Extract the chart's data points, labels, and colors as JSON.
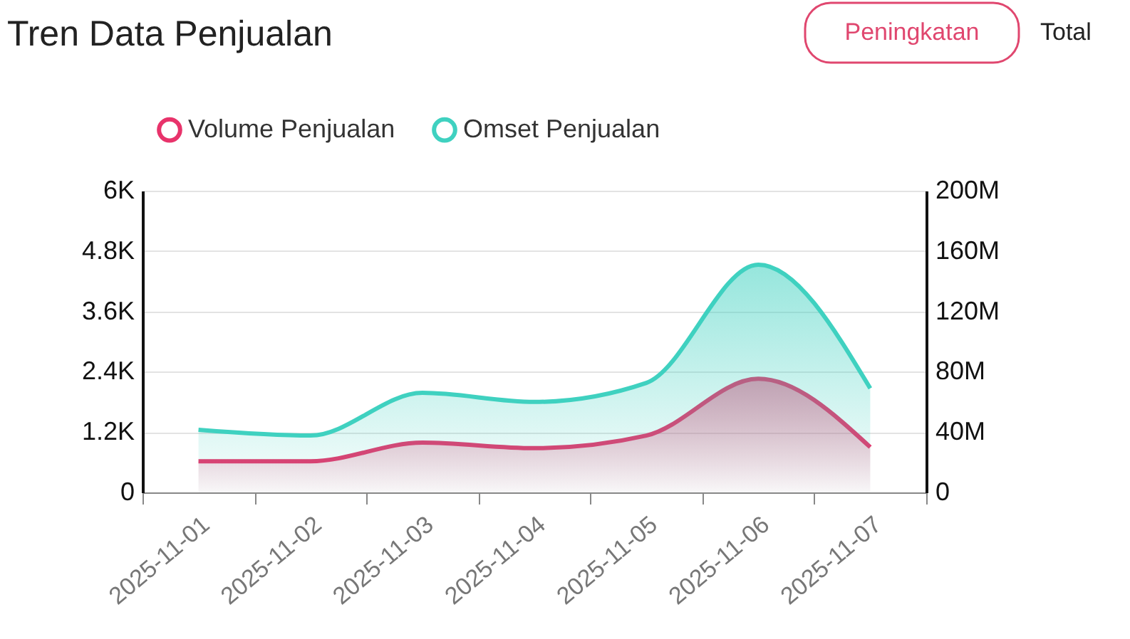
{
  "chart_data": {
    "type": "area",
    "title": "Tren Data Penjualan",
    "annotations": [
      "Peningkatan",
      "Total"
    ],
    "categories": [
      "2025-11-01",
      "2025-11-02",
      "2025-11-03",
      "2025-11-04",
      "2025-11-05",
      "2025-11-06",
      "2025-11-07"
    ],
    "series": [
      {
        "name": "Volume Penjualan",
        "color": "#e8336b",
        "values": [
          620,
          620,
          990,
          880,
          1130,
          2260,
          900
        ]
      },
      {
        "name": "Omset Penjualan",
        "color": "#3fd1c0",
        "axis": "y2",
        "values": [
          41500000,
          37700000,
          66000000,
          60000000,
          72600000,
          151000000,
          69000000
        ]
      }
    ],
    "ylim": [
      0,
      6000
    ],
    "yticks": [
      0,
      {
        "value": 1200,
        "label": "1.2K"
      },
      {
        "value": 2400,
        "label": "2.4K"
      },
      {
        "value": 3600,
        "label": "3.6K"
      },
      {
        "value": 4800,
        "label": "4.8K"
      },
      {
        "value": 6000,
        "label": "6K"
      }
    ],
    "y2lim": [
      0,
      200000000
    ],
    "y2ticks": [
      0,
      {
        "value": 40000000,
        "label": "40M"
      },
      {
        "value": 80000000,
        "label": "80M"
      },
      {
        "value": 120000000,
        "label": "120M"
      },
      {
        "value": 160000000,
        "label": "160M"
      },
      {
        "value": 200000000,
        "label": "200M"
      }
    ],
    "grid": "y",
    "legend": "top",
    "marker": "none",
    "line_style": "solid"
  }
}
